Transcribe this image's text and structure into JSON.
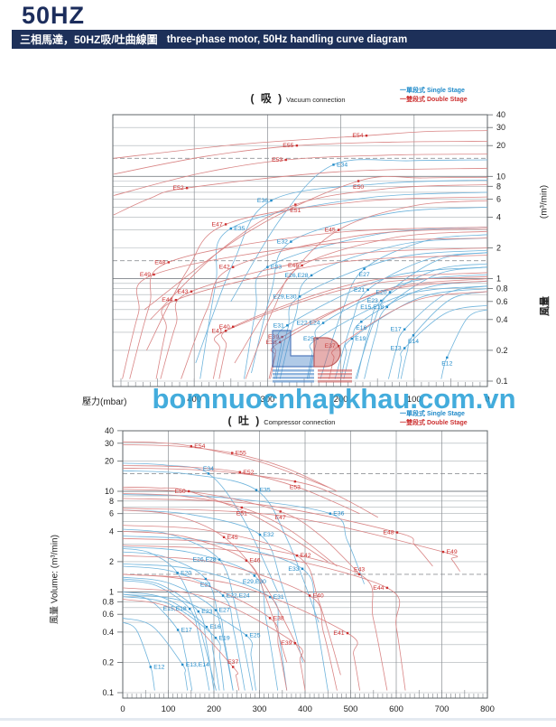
{
  "page": {
    "title": "50HZ",
    "banner_zh": "三相馬達，50HZ吸/吐曲線圖",
    "banner_en": "three-phase motor, 50Hz handling curve diagram",
    "watermark": "bomnuocnhapkhau.com.vn"
  },
  "colors": {
    "navy": "#1d3059",
    "single_stage_curve": "#6fb4dc",
    "double_stage_curve": "#d98585",
    "single_stage_label": "#1f8ac9",
    "double_stage_label": "#cc3030",
    "grid": "#aab0b5",
    "watermark_blue": "#29a1d7",
    "logo_blue": "#4a86c8",
    "logo_red": "#cc5a5a"
  },
  "legend": {
    "single_label": "一單段式 Single Stage",
    "double_label": "一雙段式 Double Stage"
  },
  "chart_data": [
    {
      "id": "vacuum",
      "type": "line",
      "title_zh": "( 吸 )",
      "title_en": "Vacuum connection",
      "xlabel": "壓力(mbar)",
      "x_ticks": [
        400,
        300,
        200,
        100,
        0
      ],
      "x_axis_reversed": true,
      "x_range_mbar": [
        0,
        510
      ],
      "ylabel_cjk": "風量",
      "ylabel_unit": "(m³/min)",
      "y_scale": "log",
      "y_ticks": [
        40,
        30,
        20,
        10,
        8,
        6,
        4,
        2,
        1,
        0.8,
        0.6,
        0.4,
        0.2,
        0.1
      ],
      "y_range": [
        0.1,
        40
      ],
      "dashed_reference_lines": [
        15,
        1.5
      ],
      "grid": true,
      "legend_position": "top-right",
      "series_format": [
        "name",
        "stage(s=single/blue,d=double/red)",
        "dot[mbar,m3/min]",
        "flow_at_0mbar",
        "end[mbar,m3/min]",
        "label_side(l/r/a/b)"
      ],
      "series": [
        [
          "E12",
          "s",
          [
            55,
            0.17
          ],
          0.5,
          [
            63,
            0.105
          ],
          "b"
        ],
        [
          "E13",
          "s",
          [
            113,
            0.21
          ],
          0.55,
          [
            122,
            0.105
          ],
          "l"
        ],
        [
          "E14",
          "s",
          [
            101,
            0.28
          ],
          0.75,
          [
            118,
            0.105
          ],
          "b"
        ],
        [
          "E15,E18",
          "s",
          [
            137,
            0.53
          ],
          1.3,
          [
            168,
            0.105
          ],
          "l"
        ],
        [
          "E16",
          "s",
          [
            172,
            0.38
          ],
          0.95,
          [
            196,
            0.105
          ],
          "b"
        ],
        [
          "E17",
          "s",
          [
            113,
            0.32
          ],
          0.85,
          [
            135,
            0.105
          ],
          "l"
        ],
        [
          "E19",
          "s",
          [
            185,
            0.26
          ],
          0.8,
          [
            200,
            0.105
          ],
          "r"
        ],
        [
          "E20",
          "s",
          [
            133,
            0.74
          ],
          1.8,
          [
            180,
            0.105
          ],
          "l"
        ],
        [
          "E21",
          "s",
          [
            163,
            0.78
          ],
          1.8,
          [
            208,
            0.105
          ],
          "l"
        ],
        [
          "E22,E24",
          "s",
          [
            224,
            0.37
          ],
          1.1,
          [
            244,
            0.105
          ],
          "l"
        ],
        [
          "E23",
          "s",
          [
            145,
            0.61
          ],
          1.4,
          [
            178,
            0.105
          ],
          "l"
        ],
        [
          "E25",
          "s",
          [
            232,
            0.26
          ],
          0.85,
          [
            246,
            0.105
          ],
          "l"
        ],
        [
          "E26,E28",
          "s",
          [
            240,
            1.08
          ],
          2.5,
          [
            283,
            0.105
          ],
          "l"
        ],
        [
          "E27",
          "s",
          [
            168,
            1.25
          ],
          2.7,
          [
            228,
            0.105
          ],
          "b"
        ],
        [
          "E29,E30",
          "s",
          [
            256,
            0.67
          ],
          1.9,
          [
            288,
            0.105
          ],
          "l"
        ],
        [
          "E31",
          "s",
          [
            273,
            0.35
          ],
          1.3,
          [
            290,
            0.105
          ],
          "l"
        ],
        [
          "E32",
          "s",
          [
            268,
            2.3
          ],
          5.0,
          [
            322,
            0.12
          ],
          "l"
        ],
        [
          "E33",
          "s",
          [
            300,
            1.3
          ],
          3.2,
          [
            332,
            0.105
          ],
          "r"
        ],
        [
          "E34",
          "s",
          [
            210,
            13
          ],
          14.5,
          [
            350,
            0.6
          ],
          "r"
        ],
        [
          "E35",
          "s",
          [
            350,
            3.1
          ],
          7.0,
          [
            392,
            0.105
          ],
          "r"
        ],
        [
          "E36",
          "s",
          [
            295,
            5.8
          ],
          9.2,
          [
            398,
            0.15
          ],
          "l"
        ],
        [
          "E37",
          "d",
          [
            203,
            0.22
          ],
          0.75,
          [
            216,
            0.105
          ],
          "l"
        ],
        [
          "E38",
          "d",
          [
            283,
            0.24
          ],
          1.0,
          [
            296,
            0.105
          ],
          "l"
        ],
        [
          "E39",
          "d",
          [
            280,
            0.27
          ],
          0.95,
          [
            298,
            0.105
          ],
          "l"
        ],
        [
          "E40",
          "d",
          [
            347,
            0.34
          ],
          1.15,
          [
            366,
            0.105
          ],
          "l"
        ],
        [
          "E41",
          "d",
          [
            357,
            0.31
          ],
          1.05,
          [
            374,
            0.105
          ],
          "l"
        ],
        [
          "E42",
          "d",
          [
            347,
            1.3
          ],
          3.1,
          [
            418,
            0.105
          ],
          "l"
        ],
        [
          "E43",
          "d",
          [
            404,
            0.75
          ],
          2.0,
          [
            446,
            0.105
          ],
          "l"
        ],
        [
          "E44",
          "d",
          [
            425,
            0.62
          ],
          1.7,
          [
            452,
            0.105
          ],
          "l"
        ],
        [
          "E45",
          "d",
          [
            203,
            3.0
          ],
          5.8,
          [
            345,
            0.15
          ],
          "l"
        ],
        [
          "E46",
          "d",
          [
            253,
            1.35
          ],
          2.9,
          [
            330,
            0.105
          ],
          "l"
        ],
        [
          "E47",
          "d",
          [
            357,
            3.4
          ],
          6.3,
          [
            465,
            0.2
          ],
          "l"
        ],
        [
          "E48",
          "d",
          [
            435,
            1.45
          ],
          3.2,
          [
            488,
            0.105
          ],
          "l"
        ],
        [
          "E49",
          "d",
          [
            455,
            1.1
          ],
          2.5,
          [
            498,
            0.105
          ],
          "l"
        ],
        [
          "E50",
          "d",
          [
            176,
            9.0
          ],
          9.8,
          [
            468,
            0.5
          ],
          "b"
        ],
        [
          "E51",
          "d",
          [
            262,
            5.3
          ],
          8.3,
          [
            460,
            0.4
          ],
          "b"
        ],
        [
          "E52",
          "d",
          [
            410,
            7.7
          ],
          12,
          [
            510,
            4.2
          ],
          "l"
        ],
        [
          "E53",
          "d",
          [
            275,
            14.5
          ],
          16.5,
          [
            510,
            6.5
          ],
          "l"
        ],
        [
          "E54",
          "d",
          [
            165,
            25
          ],
          28,
          [
            510,
            15
          ],
          "l"
        ],
        [
          "E55",
          "d",
          [
            260,
            20
          ],
          22,
          [
            510,
            10.5
          ],
          "l"
        ]
      ]
    },
    {
      "id": "compressor",
      "type": "line",
      "title_zh": "( 吐 )",
      "title_en": "Compressor connection",
      "xlabel": "",
      "x_ticks": [
        0,
        100,
        200,
        300,
        400,
        500,
        600,
        700,
        800
      ],
      "x_axis_reversed": false,
      "x_range_mbar": [
        0,
        800
      ],
      "ylabel": "風量 Volume: (m³/min)",
      "y_scale": "log",
      "y_ticks": [
        40,
        30,
        20,
        10,
        8,
        6,
        4,
        2,
        1,
        0.8,
        0.6,
        0.4,
        0.2,
        0.1
      ],
      "y_range": [
        0.1,
        40
      ],
      "dashed_reference_lines": [
        15,
        1.5
      ],
      "grid": true,
      "legend_position": "top-right",
      "series_format": [
        "name",
        "stage(s=single/blue,d=double/red)",
        "dot[mbar,m3/min]",
        "flow_at_0mbar",
        "end[mbar,m3/min]",
        "label_side(l/r/a/b)"
      ],
      "series": [
        [
          "E12",
          "s",
          [
            61,
            0.18
          ],
          0.5,
          [
            70,
            0.105
          ],
          "r"
        ],
        [
          "E13,E14",
          "s",
          [
            131,
            0.19
          ],
          0.55,
          [
            142,
            0.105
          ],
          "r"
        ],
        [
          "E15,E18",
          "s",
          [
            147,
            0.68
          ],
          1.3,
          [
            190,
            0.105
          ],
          "l"
        ],
        [
          "E16",
          "s",
          [
            184,
            0.45
          ],
          1.0,
          [
            212,
            0.105
          ],
          "r"
        ],
        [
          "E17",
          "s",
          [
            121,
            0.42
          ],
          0.95,
          [
            152,
            0.105
          ],
          "r"
        ],
        [
          "E19",
          "s",
          [
            204,
            0.35
          ],
          0.9,
          [
            222,
            0.105
          ],
          "r"
        ],
        [
          "E20",
          "s",
          [
            120,
            1.55
          ],
          2.7,
          [
            205,
            0.105
          ],
          "r"
        ],
        [
          "E21",
          "s",
          [
            182,
            1.35
          ],
          2.5,
          [
            242,
            0.105
          ],
          "b"
        ],
        [
          "E22,E24",
          "s",
          [
            220,
            0.92
          ],
          1.8,
          [
            268,
            0.105
          ],
          "r"
        ],
        [
          "E23",
          "s",
          [
            166,
            0.64
          ],
          1.35,
          [
            200,
            0.105
          ],
          "r"
        ],
        [
          "E25",
          "s",
          [
            271,
            0.37
          ],
          0.95,
          [
            292,
            0.105
          ],
          "r"
        ],
        [
          "E26,E28",
          "s",
          [
            212,
            2.1
          ],
          4.2,
          [
            285,
            0.105
          ],
          "l"
        ],
        [
          "E27",
          "s",
          [
            204,
            0.66
          ],
          1.4,
          [
            242,
            0.105
          ],
          "r"
        ],
        [
          "E29,E30",
          "s",
          [
            289,
            1.45
          ],
          2.8,
          [
            340,
            0.105
          ],
          "b"
        ],
        [
          "E31",
          "s",
          [
            323,
            0.89
          ],
          1.9,
          [
            360,
            0.105
          ],
          "r"
        ],
        [
          "E32",
          "s",
          [
            301,
            3.7
          ],
          6.5,
          [
            395,
            0.2
          ],
          "r"
        ],
        [
          "E33",
          "s",
          [
            394,
            1.7
          ],
          3.6,
          [
            450,
            0.105
          ],
          "l"
        ],
        [
          "E34",
          "s",
          [
            188,
            15
          ],
          19,
          [
            340,
            1.0
          ],
          "a"
        ],
        [
          "E35",
          "s",
          [
            293,
            10.3
          ],
          16,
          [
            430,
            0.5
          ],
          "r"
        ],
        [
          "E36",
          "s",
          [
            455,
            6.0
          ],
          9.3,
          [
            530,
            1.2
          ],
          "r"
        ],
        [
          "E37",
          "d",
          [
            242,
            0.18
          ],
          0.85,
          [
            255,
            0.105
          ],
          "a"
        ],
        [
          "E38",
          "d",
          [
            323,
            0.55
          ],
          1.5,
          [
            360,
            0.105
          ],
          "r"
        ],
        [
          "E39",
          "d",
          [
            378,
            0.31
          ],
          1.1,
          [
            400,
            0.105
          ],
          "l"
        ],
        [
          "E40",
          "d",
          [
            410,
            0.92
          ],
          2.3,
          [
            470,
            0.105
          ],
          "r"
        ],
        [
          "E41",
          "d",
          [
            493,
            0.39
          ],
          1.5,
          [
            520,
            0.105
          ],
          "l"
        ],
        [
          "E42",
          "d",
          [
            382,
            2.3
          ],
          4.6,
          [
            478,
            0.15
          ],
          "r"
        ],
        [
          "E43",
          "d",
          [
            519,
            1.5
          ],
          3.4,
          [
            580,
            0.105
          ],
          "a"
        ],
        [
          "E44",
          "d",
          [
            580,
            1.1
          ],
          2.9,
          [
            620,
            0.105
          ],
          "l"
        ],
        [
          "E45",
          "d",
          [
            222,
            3.5
          ],
          6.5,
          [
            400,
            0.2
          ],
          "r"
        ],
        [
          "E46",
          "d",
          [
            271,
            2.05
          ],
          4.0,
          [
            360,
            0.2
          ],
          "r"
        ],
        [
          "E47",
          "d",
          [
            346,
            6.3
          ],
          10.5,
          [
            520,
            1.5
          ],
          "b"
        ],
        [
          "E48",
          "d",
          [
            602,
            3.9
          ],
          8.5,
          [
            680,
            1.8
          ],
          "l"
        ],
        [
          "E49",
          "d",
          [
            703,
            2.5
          ],
          6.8,
          [
            740,
            1.6
          ],
          "r"
        ],
        [
          "E50",
          "d",
          [
            145,
            10
          ],
          11,
          [
            450,
            2.0
          ],
          "l"
        ],
        [
          "E51",
          "d",
          [
            261,
            6.9
          ],
          9.5,
          [
            470,
            1.8
          ],
          "b"
        ],
        [
          "E52",
          "d",
          [
            257,
            15.5
          ],
          18,
          [
            520,
            6.0
          ],
          "r"
        ],
        [
          "E53",
          "d",
          [
            378,
            12.5
          ],
          17,
          [
            560,
            5.5
          ],
          "b"
        ],
        [
          "E54",
          "d",
          [
            150,
            28
          ],
          31,
          [
            450,
            11
          ],
          "r"
        ],
        [
          "E55",
          "d",
          [
            240,
            24
          ],
          29,
          [
            470,
            10
          ],
          "r"
        ]
      ]
    }
  ]
}
